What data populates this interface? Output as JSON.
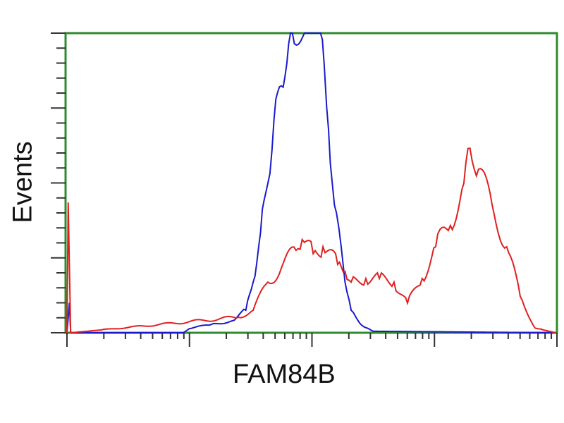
{
  "chart_data": {
    "type": "line",
    "title": "",
    "xlabel": "FAM84B",
    "ylabel": "Events",
    "x_scale": "log",
    "xlim": [
      0,
      4
    ],
    "ylim": [
      0,
      100
    ],
    "grid": false,
    "axis_color": "#2e8b2e",
    "series": [
      {
        "color": "#1a1acc",
        "x": [
          0,
          0.02,
          0.03,
          0.95,
          1.0,
          1.18,
          1.35,
          1.46,
          1.52,
          1.58,
          1.64,
          1.69,
          1.75,
          1.81,
          1.84,
          2.07,
          2.1,
          2.12,
          2.15,
          2.2,
          2.24,
          2.27,
          2.32,
          2.41,
          2.5,
          3.99
        ],
        "y": [
          0,
          10,
          0,
          0,
          1.4,
          2.8,
          4.0,
          7.5,
          16.9,
          33.4,
          49.9,
          71.1,
          82.4,
          96.5,
          100,
          100,
          89.4,
          75.3,
          56.5,
          40,
          28.2,
          16.9,
          7.5,
          2.4,
          0.5,
          0
        ]
      },
      {
        "color": "#e02020",
        "x": [
          0,
          0.01,
          0.03,
          1.4,
          1.52,
          1.64,
          1.75,
          1.87,
          1.92,
          2.01,
          2.09,
          2.21,
          2.27,
          2.32,
          2.44,
          2.55,
          2.67,
          2.78,
          2.9,
          3.01,
          3.13,
          3.24,
          3.29,
          3.36,
          3.47,
          3.59,
          3.7,
          3.82,
          3.99
        ],
        "y": [
          0,
          43.5,
          0,
          5.2,
          7.5,
          16.9,
          21.6,
          27.5,
          31.1,
          26.4,
          28.7,
          22.8,
          20.5,
          16.9,
          18.1,
          18.1,
          16.9,
          9.9,
          18.1,
          28.7,
          35.8,
          49.9,
          61.6,
          54.6,
          42.8,
          28.7,
          12.2,
          1.6,
          0
        ]
      }
    ]
  }
}
